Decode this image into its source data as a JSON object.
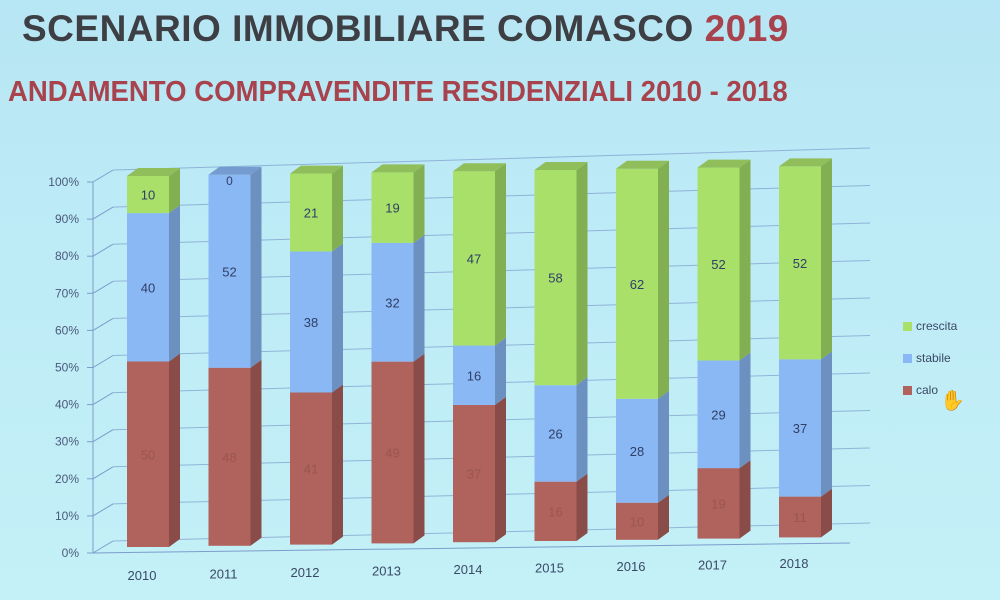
{
  "header": {
    "title_main": "SCENARIO IMMOBILIARE COMASCO",
    "title_year": "2019",
    "subtitle": "ANDAMENTO COMPRAVENDITE RESIDENZIALI 2010 - 2018"
  },
  "legend": [
    {
      "name": "crescita",
      "color": "#a8e06a"
    },
    {
      "name": "stabile",
      "color": "#8ab8f5"
    },
    {
      "name": "calo",
      "color": "#b0625c"
    }
  ],
  "cursor_icon": "hand-cursor-icon",
  "chart_data": {
    "type": "bar",
    "stacked": true,
    "percent_stacked": true,
    "three_d": true,
    "title": "ANDAMENTO COMPRAVENDITE RESIDENZIALI 2010 - 2018",
    "xlabel": "",
    "ylabel": "",
    "ylim": [
      0,
      100
    ],
    "yticks": [
      "0%",
      "10%",
      "20%",
      "30%",
      "40%",
      "50%",
      "60%",
      "70%",
      "80%",
      "90%",
      "100%"
    ],
    "categories": [
      "2010",
      "2011",
      "2012",
      "2013",
      "2014",
      "2015",
      "2016",
      "2017",
      "2018"
    ],
    "series": [
      {
        "name": "calo",
        "color": "#b0625c",
        "values": [
          50,
          48,
          41,
          49,
          37,
          16,
          10,
          19,
          11
        ]
      },
      {
        "name": "stabile",
        "color": "#8ab8f5",
        "values": [
          40,
          52,
          38,
          32,
          16,
          26,
          28,
          29,
          37
        ]
      },
      {
        "name": "crescita",
        "color": "#a8e06a",
        "values": [
          10,
          0,
          21,
          19,
          47,
          58,
          62,
          52,
          52
        ]
      }
    ],
    "legend_position": "right",
    "grid": true
  }
}
